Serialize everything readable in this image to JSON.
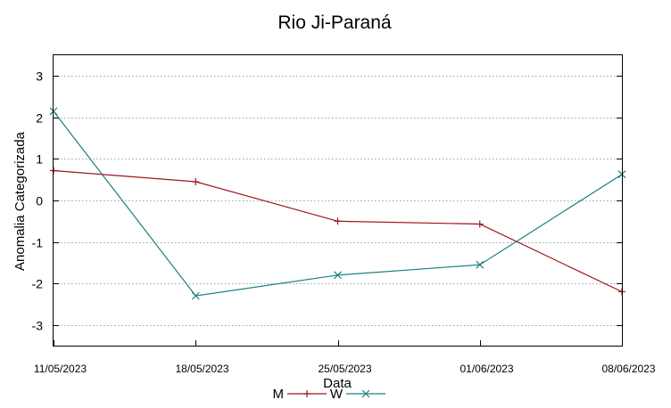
{
  "chart_data": {
    "type": "line",
    "title": "Rio Ji-Paraná",
    "xlabel": "Data",
    "ylabel": "Anomalia Categorizada",
    "categories": [
      "11/05/2023",
      "18/05/2023",
      "25/05/2023",
      "01/06/2023",
      "08/06/2023"
    ],
    "ylim": [
      -3.5,
      3.5
    ],
    "yticks": [
      3,
      2,
      1,
      0,
      -1,
      -2,
      -3
    ],
    "grid": true,
    "legend_position": "bottom-center",
    "series": [
      {
        "name": "M",
        "color": "#a0141e",
        "marker": "plus",
        "values": [
          0.72,
          0.45,
          -0.5,
          -0.57,
          -2.2
        ]
      },
      {
        "name": "W",
        "color": "#1b7f7f",
        "marker": "cross",
        "values": [
          2.15,
          -2.3,
          -1.8,
          -1.55,
          0.63
        ]
      }
    ]
  }
}
